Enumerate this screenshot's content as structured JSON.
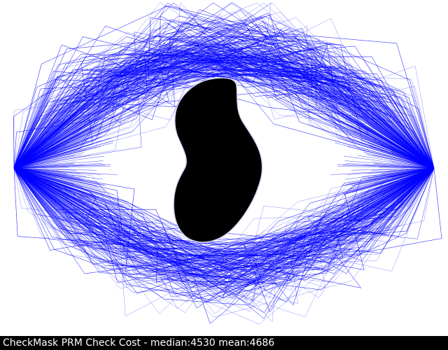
{
  "status_bar": {
    "text": "CheckMask PRM Check Cost - median:4530 mean:4686"
  },
  "colors": {
    "background": "#ffffff",
    "path_color": "#0000ff",
    "obstacle_color": "#000000",
    "status_bar_background": "#000000",
    "status_bar_text": "#ffffff"
  }
}
